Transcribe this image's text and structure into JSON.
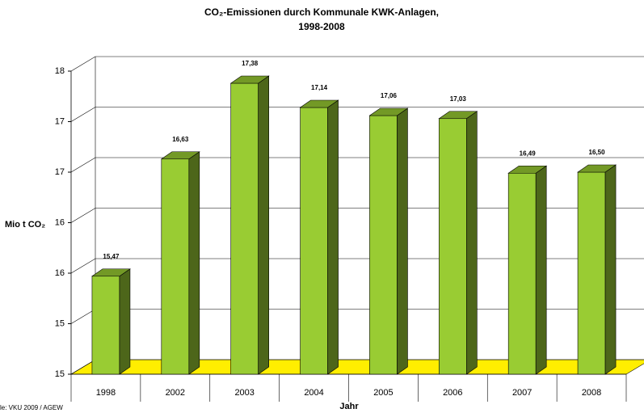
{
  "chart_data": {
    "type": "bar3d",
    "title": [
      "CO₂-Emissionen durch Kommunale KWK-Anlagen,",
      "1998-2008"
    ],
    "y_label": "Mio t CO₂",
    "x_label": "Jahr",
    "source": "le: VKU 2009 / AGEW",
    "categories": [
      "1998",
      "2002",
      "2003",
      "2004",
      "2005",
      "2006",
      "2007",
      "2008"
    ],
    "values": [
      15.47,
      16.63,
      17.38,
      17.14,
      17.06,
      17.03,
      16.49,
      16.5
    ],
    "value_labels": [
      "15,47",
      "16,63",
      "17,38",
      "17,14",
      "17,06",
      "17,03",
      "16,49",
      "16,50"
    ],
    "color": "#99cc33",
    "floor_color": "#ffee00",
    "ylim": [
      14.5,
      17.5
    ],
    "yticks": [
      {
        "value": 14.5,
        "label": "15"
      },
      {
        "value": 15,
        "label": "15"
      },
      {
        "value": 15.5,
        "label": "16"
      },
      {
        "value": 16,
        "label": "16"
      },
      {
        "value": 16.5,
        "label": "17"
      },
      {
        "value": 17,
        "label": "17"
      },
      {
        "value": 17.5,
        "label": "18"
      }
    ],
    "grid": true
  }
}
